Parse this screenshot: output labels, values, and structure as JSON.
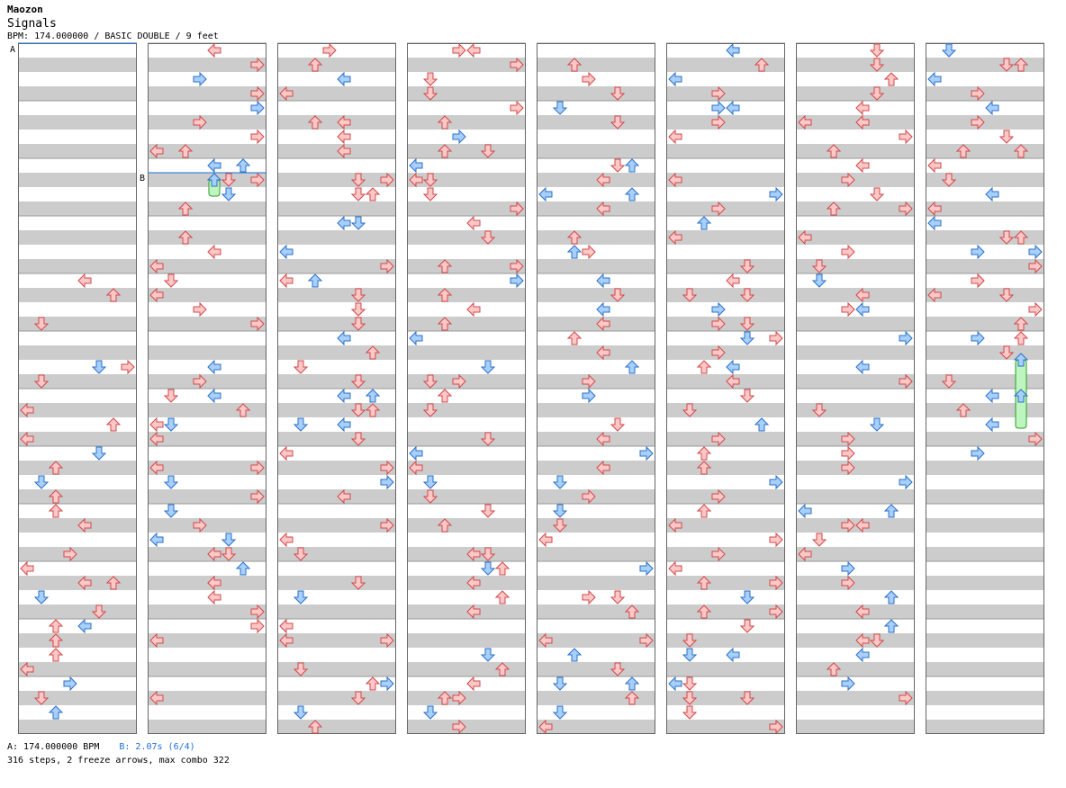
{
  "song": {
    "artist": "Maozon",
    "title": "Signals",
    "info": "BPM: 174.000000 / BASIC DOUBLE / 9 feet"
  },
  "legend": {
    "a_text": "A: 174.000000 BPM",
    "b_text": "B: 2.07s (6/4)",
    "stats": "316 steps, 2 freeze arrows, max combo 322"
  },
  "markers": {
    "a_label": "A",
    "b_label": "B"
  },
  "colors": {
    "background": "#ffffff",
    "band": "#cccccc",
    "grid_border": "#666666",
    "red_arrow_fill": "#ffc8c8",
    "red_arrow_stroke": "#d24848",
    "blue_arrow_fill": "#a8d0ff",
    "blue_arrow_stroke": "#2b6fc4",
    "freeze_fill": "#bff5bf",
    "freeze_stroke": "#2e9a2e",
    "marker_line": "#1e6fd8"
  }
}
